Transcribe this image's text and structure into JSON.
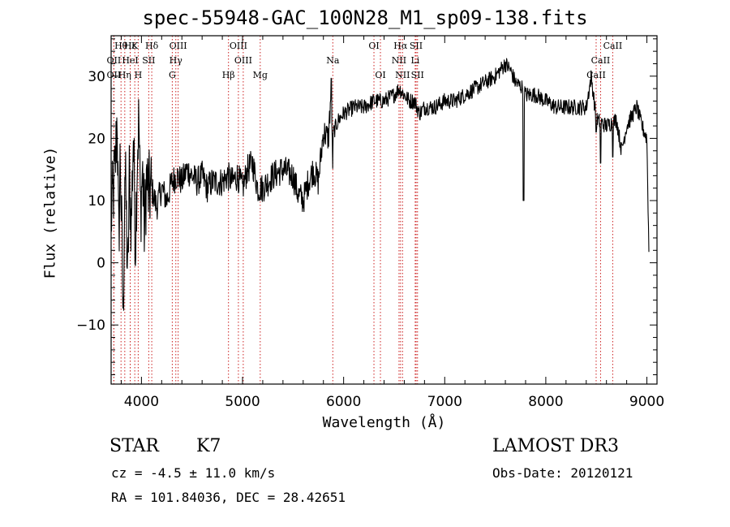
{
  "header": {
    "title": "spec-55948-GAC_100N28_M1_sp09-138.fits"
  },
  "info": {
    "object_class": "STAR",
    "subclass": "K7",
    "survey": "LAMOST DR3",
    "cz": "cz = -4.5 ± 11.0 km/s",
    "obs_date": "Obs-Date: 20120121",
    "coords": "RA = 101.84036, DEC =  28.42651"
  },
  "colors": {
    "axis": "#000000",
    "spectrum": "#000000",
    "line_marker": "#cc2020",
    "background": "#ffffff"
  },
  "chart_data": {
    "type": "line",
    "title": "spec-55948-GAC_100N28_M1_sp09-138.fits",
    "xlabel": "Wavelength (Å)",
    "ylabel": "Flux (relative)",
    "xlim": [
      3700,
      9100
    ],
    "ylim": [
      -19.5,
      36.5
    ],
    "xticks": [
      4000,
      5000,
      6000,
      7000,
      8000,
      9000
    ],
    "yticks": [
      -10,
      0,
      10,
      20,
      30
    ],
    "x_minor_step": 200,
    "y_minor_step": 2,
    "spectrum_anchors": [
      [
        3700,
        7
      ],
      [
        3740,
        15
      ],
      [
        3760,
        24
      ],
      [
        3775,
        2
      ],
      [
        3790,
        18
      ],
      [
        3805,
        4
      ],
      [
        3820,
        -10
      ],
      [
        3835,
        16
      ],
      [
        3850,
        8
      ],
      [
        3865,
        -4
      ],
      [
        3880,
        14
      ],
      [
        3900,
        6
      ],
      [
        3920,
        21
      ],
      [
        3940,
        3
      ],
      [
        3960,
        18
      ],
      [
        3975,
        23
      ],
      [
        3990,
        8
      ],
      [
        4010,
        15
      ],
      [
        4030,
        5
      ],
      [
        4050,
        14
      ],
      [
        4070,
        11
      ],
      [
        4100,
        12
      ],
      [
        4150,
        9
      ],
      [
        4200,
        12
      ],
      [
        4250,
        10
      ],
      [
        4300,
        13
      ],
      [
        4350,
        14
      ],
      [
        4400,
        13
      ],
      [
        4450,
        15
      ],
      [
        4500,
        14
      ],
      [
        4550,
        13
      ],
      [
        4600,
        14
      ],
      [
        4650,
        12
      ],
      [
        4700,
        13
      ],
      [
        4800,
        13
      ],
      [
        4850,
        14
      ],
      [
        4900,
        13
      ],
      [
        4950,
        14
      ],
      [
        5000,
        12
      ],
      [
        5050,
        15
      ],
      [
        5100,
        16
      ],
      [
        5150,
        12
      ],
      [
        5200,
        12
      ],
      [
        5300,
        14
      ],
      [
        5400,
        15
      ],
      [
        5500,
        14
      ],
      [
        5550,
        11
      ],
      [
        5600,
        10
      ],
      [
        5650,
        13
      ],
      [
        5700,
        15
      ],
      [
        5750,
        13
      ],
      [
        5800,
        21
      ],
      [
        5850,
        20
      ],
      [
        5880,
        29
      ],
      [
        5890,
        15
      ],
      [
        5900,
        21
      ],
      [
        5950,
        23
      ],
      [
        6000,
        24
      ],
      [
        6100,
        25
      ],
      [
        6200,
        25
      ],
      [
        6300,
        26
      ],
      [
        6400,
        26
      ],
      [
        6500,
        27
      ],
      [
        6550,
        28
      ],
      [
        6600,
        27
      ],
      [
        6650,
        26
      ],
      [
        6700,
        26
      ],
      [
        6750,
        24
      ],
      [
        6800,
        25
      ],
      [
        6900,
        25
      ],
      [
        7000,
        26
      ],
      [
        7100,
        26
      ],
      [
        7200,
        27
      ],
      [
        7300,
        28
      ],
      [
        7400,
        29
      ],
      [
        7500,
        30
      ],
      [
        7600,
        32
      ],
      [
        7650,
        31
      ],
      [
        7700,
        29
      ],
      [
        7780,
        28
      ],
      [
        7800,
        27
      ],
      [
        7900,
        27
      ],
      [
        8000,
        26
      ],
      [
        8100,
        25
      ],
      [
        8200,
        25
      ],
      [
        8300,
        25
      ],
      [
        8400,
        25
      ],
      [
        8450,
        30
      ],
      [
        8500,
        23
      ],
      [
        8600,
        22
      ],
      [
        8700,
        23
      ],
      [
        8750,
        18
      ],
      [
        8800,
        22
      ],
      [
        8900,
        25
      ],
      [
        8950,
        22
      ],
      [
        9000,
        20
      ],
      [
        9020,
        2
      ]
    ],
    "absorption_dips": [
      {
        "x": 7780,
        "y": 10
      },
      {
        "x": 8542,
        "y": 16
      },
      {
        "x": 8662,
        "y": 17
      },
      {
        "x": 8498,
        "y": 21
      }
    ],
    "line_markers": [
      {
        "label": "Hθ",
        "x": 3798,
        "row": 0
      },
      {
        "label": "Hε",
        "x": 3889,
        "row": 0
      },
      {
        "label": "K",
        "x": 3934,
        "row": 0
      },
      {
        "label": "Hδ",
        "x": 4102,
        "row": 0
      },
      {
        "label": "OIII",
        "x": 4363,
        "row": 0
      },
      {
        "label": "OIII",
        "x": 4959,
        "row": 0
      },
      {
        "label": "OI",
        "x": 6300,
        "row": 0
      },
      {
        "label": "Hα",
        "x": 6563,
        "row": 0
      },
      {
        "label": "SII",
        "x": 6717,
        "row": 0
      },
      {
        "label": "CaII",
        "x": 8662,
        "row": 0
      },
      {
        "label": "OII",
        "x": 3727,
        "row": 1
      },
      {
        "label": "HeI",
        "x": 3889,
        "row": 1
      },
      {
        "label": "SII",
        "x": 4072,
        "row": 1
      },
      {
        "label": "Hγ",
        "x": 4340,
        "row": 1
      },
      {
        "label": "OIII",
        "x": 5007,
        "row": 1
      },
      {
        "label": "Na",
        "x": 5893,
        "row": 1
      },
      {
        "label": "NII",
        "x": 6548,
        "row": 1
      },
      {
        "label": "Li",
        "x": 6708,
        "row": 1
      },
      {
        "label": "CaII",
        "x": 8542,
        "row": 1
      },
      {
        "label": "OII",
        "x": 3727,
        "row": 2
      },
      {
        "label": "Hη",
        "x": 3835,
        "row": 2
      },
      {
        "label": "H",
        "x": 3968,
        "row": 2
      },
      {
        "label": "G",
        "x": 4305,
        "row": 2
      },
      {
        "label": "Hβ",
        "x": 4861,
        "row": 2
      },
      {
        "label": "Mg",
        "x": 5175,
        "row": 2
      },
      {
        "label": "OI",
        "x": 6364,
        "row": 2
      },
      {
        "label": "NII",
        "x": 6583,
        "row": 2
      },
      {
        "label": "SII",
        "x": 6731,
        "row": 2
      },
      {
        "label": "CaII",
        "x": 8498,
        "row": 2
      }
    ]
  }
}
